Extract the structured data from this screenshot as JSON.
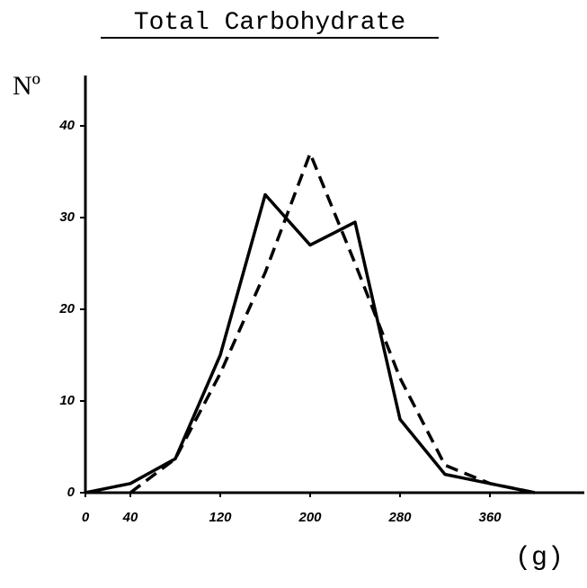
{
  "chart_data": {
    "type": "line",
    "title": "Total Carbohydrate",
    "ylabel": "Nº",
    "xlabel": "(g)",
    "x": [
      0,
      40,
      80,
      120,
      160,
      200,
      240,
      280,
      320,
      360,
      400
    ],
    "series": [
      {
        "color": "#000000",
        "dashed": false,
        "values": [
          0,
          1,
          3.7,
          15,
          32.5,
          27,
          29.5,
          8,
          2,
          1,
          0
        ]
      },
      {
        "color": "#000000",
        "dashed": true,
        "values": [
          null,
          0,
          3.7,
          13,
          24,
          37,
          25,
          12.5,
          3,
          1,
          0
        ]
      }
    ],
    "xlim": [
      0,
      440
    ],
    "xticks": [
      0,
      40,
      120,
      200,
      280,
      360
    ],
    "ylim": [
      0,
      45
    ],
    "yticks": [
      0,
      10,
      20,
      30,
      40
    ]
  }
}
